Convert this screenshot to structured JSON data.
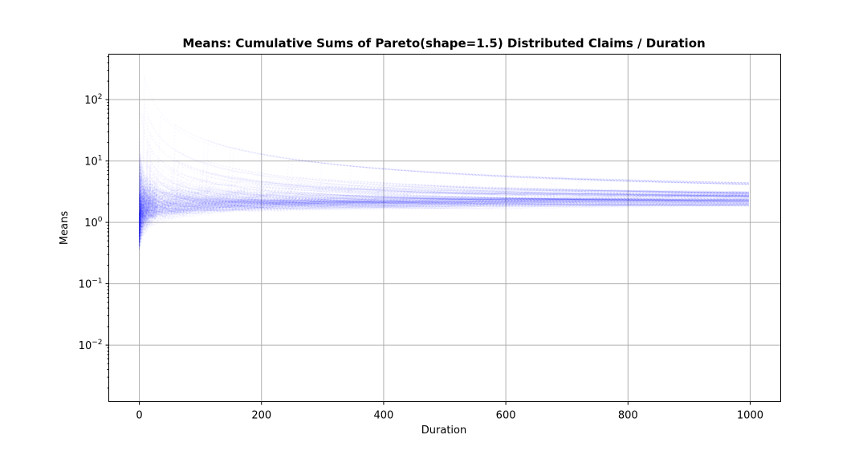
{
  "chart_data": {
    "type": "line",
    "title": "Means: Cumulative Sums of Pareto(shape=1.5) Distributed Claims / Duration",
    "xlabel": "Duration",
    "ylabel": "Means",
    "xlim": [
      -50,
      1050
    ],
    "ylim": [
      0.0012,
      550
    ],
    "yscale": "log",
    "grid": true,
    "x_ticks": [
      0,
      200,
      400,
      600,
      800,
      1000
    ],
    "y_ticks": [
      {
        "value": 0.01,
        "base": "10",
        "exp": "−2"
      },
      {
        "value": 0.1,
        "base": "10",
        "exp": "−1"
      },
      {
        "value": 1,
        "base": "10",
        "exp": "0"
      },
      {
        "value": 10,
        "base": "10",
        "exp": "1"
      },
      {
        "value": 100,
        "base": "10",
        "exp": "2"
      }
    ],
    "x_range": [
      0,
      999
    ],
    "series_color": "#0000ff",
    "series_opacity": 0.03,
    "series_count": 300,
    "converged_mean": 1.85,
    "band_at_1000": [
      1.55,
      2.3
    ]
  }
}
